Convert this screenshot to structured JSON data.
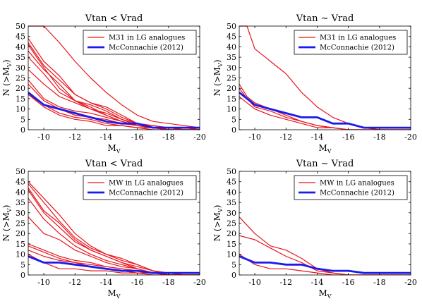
{
  "chart_data": [
    {
      "type": "line",
      "title": "Vtan < Vrad",
      "xlabel": "M_V",
      "ylabel": "N (>M_V)",
      "xlim": [
        -9,
        -20
      ],
      "ylim": [
        0,
        50
      ],
      "xticks": [
        -10,
        -12,
        -14,
        -16,
        -18,
        -20
      ],
      "yticks": [
        0,
        5,
        10,
        15,
        20,
        25,
        30,
        35,
        40,
        45,
        50
      ],
      "legend_position": "top-right",
      "legend": [
        "M31 in LG analogues",
        "McConnachie (2012)"
      ],
      "colors": {
        "simulated": "#e8141c",
        "observed": "#1a1aeb"
      },
      "simulated_series": [
        {
          "x": [
            -9,
            -10,
            -11,
            -12,
            -13,
            -14,
            -15,
            -16,
            -17,
            -18,
            -19,
            -20
          ],
          "y": [
            50,
            50,
            42,
            33,
            25,
            18,
            12,
            7,
            4,
            3,
            2,
            1
          ]
        },
        {
          "x": [
            -9,
            -10,
            -11,
            -12,
            -13,
            -14,
            -15,
            -16,
            -17,
            -18,
            -19,
            -20
          ],
          "y": [
            44,
            33,
            26,
            17,
            13,
            10,
            6,
            3,
            2,
            1,
            1,
            0
          ]
        },
        {
          "x": [
            -9,
            -10,
            -11,
            -12,
            -13,
            -14,
            -15,
            -16,
            -17,
            -18,
            -19,
            -20
          ],
          "y": [
            42,
            31,
            24,
            17,
            13,
            11,
            7,
            3,
            2,
            1,
            0,
            0
          ]
        },
        {
          "x": [
            -9,
            -10,
            -11,
            -12,
            -13,
            -14,
            -15,
            -16,
            -17,
            -18,
            -19,
            -20
          ],
          "y": [
            41,
            30,
            20,
            14,
            10,
            8,
            5,
            2,
            1,
            0,
            0,
            0
          ]
        },
        {
          "x": [
            -9,
            -10,
            -11,
            -12,
            -13,
            -14,
            -15,
            -16,
            -17,
            -18,
            -19,
            -20
          ],
          "y": [
            38,
            29,
            22,
            14,
            12,
            9,
            5,
            3,
            1,
            1,
            0,
            0
          ]
        },
        {
          "x": [
            -9,
            -10,
            -11,
            -12,
            -13,
            -14,
            -15,
            -16,
            -17,
            -18,
            -19,
            -20
          ],
          "y": [
            35,
            27,
            18,
            14,
            11,
            7,
            4,
            2,
            1,
            0,
            0,
            0
          ]
        },
        {
          "x": [
            -9,
            -10,
            -11,
            -12,
            -13,
            -14,
            -15,
            -16,
            -17,
            -18,
            -19,
            -20
          ],
          "y": [
            29,
            22,
            16,
            13,
            10,
            7,
            4,
            2,
            1,
            0,
            0,
            0
          ]
        },
        {
          "x": [
            -9,
            -10,
            -11,
            -12,
            -13,
            -14,
            -15,
            -16,
            -17,
            -18,
            -19,
            -20
          ],
          "y": [
            24,
            15,
            11,
            9,
            8,
            6,
            4,
            2,
            1,
            0,
            0,
            0
          ]
        },
        {
          "x": [
            -9,
            -10,
            -11,
            -12,
            -13,
            -14,
            -15,
            -16,
            -17,
            -18,
            -19,
            -20
          ],
          "y": [
            22,
            14,
            10,
            7,
            6,
            5,
            3,
            2,
            1,
            0,
            0,
            0
          ]
        },
        {
          "x": [
            -9,
            -10,
            -11,
            -12,
            -13,
            -14,
            -15,
            -16,
            -17,
            -18,
            -19,
            -20
          ],
          "y": [
            17,
            12,
            8,
            6,
            5,
            3,
            2,
            1,
            1,
            0,
            0,
            0
          ]
        },
        {
          "x": [
            -9,
            -10,
            -11,
            -12,
            -13,
            -14,
            -15,
            -16,
            -17,
            -18,
            -19,
            -20
          ],
          "y": [
            17,
            11,
            7,
            5,
            4,
            2,
            2,
            1,
            0,
            0,
            0,
            0
          ]
        }
      ],
      "observed_series": {
        "x": [
          -9,
          -10,
          -11,
          -12,
          -13,
          -14,
          -15,
          -16,
          -17,
          -18,
          -19,
          -20
        ],
        "y": [
          18,
          12,
          10,
          8,
          6,
          4,
          3,
          3,
          1,
          1,
          1,
          1
        ]
      }
    },
    {
      "type": "line",
      "title": "Vtan ∼ Vrad",
      "xlabel": "M_V",
      "ylabel": "N (>M_V)",
      "xlim": [
        -9,
        -20
      ],
      "ylim": [
        0,
        50
      ],
      "xticks": [
        -10,
        -12,
        -14,
        -16,
        -18,
        -20
      ],
      "yticks": [
        0,
        5,
        10,
        15,
        20,
        25,
        30,
        35,
        40,
        45,
        50
      ],
      "legend_position": "top-right",
      "legend": [
        "M31 in LG analogues",
        "McConnachie (2012)"
      ],
      "colors": {
        "simulated": "#e8141c",
        "observed": "#1a1aeb"
      },
      "simulated_series": [
        {
          "x": [
            -9,
            -9.5,
            -10,
            -11,
            -12,
            -13,
            -14,
            -15,
            -16,
            -17,
            -18,
            -19,
            -20
          ],
          "y": [
            50,
            50,
            39,
            33,
            27,
            18,
            11,
            6,
            3,
            1,
            0,
            0,
            0
          ]
        },
        {
          "x": [
            -9,
            -9.5,
            -10,
            -11,
            -12,
            -13,
            -14,
            -15,
            -16,
            -17,
            -18,
            -19,
            -20
          ],
          "y": [
            22,
            16,
            13,
            10,
            7,
            4,
            2,
            1,
            0,
            0,
            0,
            0,
            0
          ]
        },
        {
          "x": [
            -9,
            -9.5,
            -10,
            -11,
            -12,
            -13,
            -14,
            -15,
            -16,
            -17,
            -18,
            -19,
            -20
          ],
          "y": [
            20,
            15,
            11,
            9,
            6,
            4,
            2,
            1,
            0,
            0,
            0,
            0,
            0
          ]
        },
        {
          "x": [
            -9,
            -9.5,
            -10,
            -11,
            -12,
            -13,
            -14,
            -15,
            -16,
            -17,
            -18,
            -19,
            -20
          ],
          "y": [
            16,
            13,
            10,
            7,
            5,
            3,
            1,
            1,
            0,
            0,
            0,
            0,
            0
          ]
        }
      ],
      "observed_series": {
        "x": [
          -9,
          -9.5,
          -10,
          -11,
          -12,
          -13,
          -14,
          -15,
          -16,
          -17,
          -18,
          -19,
          -20
        ],
        "y": [
          18,
          15,
          12,
          10,
          8,
          6,
          6,
          3,
          3,
          1,
          1,
          1,
          1
        ]
      }
    },
    {
      "type": "line",
      "title": "Vtan < Vrad",
      "xlabel": "M_V",
      "ylabel": "N (>M_V)",
      "xlim": [
        -9,
        -20
      ],
      "ylim": [
        0,
        50
      ],
      "xticks": [
        -10,
        -12,
        -14,
        -16,
        -18,
        -20
      ],
      "yticks": [
        0,
        5,
        10,
        15,
        20,
        25,
        30,
        35,
        40,
        45,
        50
      ],
      "legend_position": "top-right",
      "legend": [
        "MW in LG analogues",
        "McConnachie (2012)"
      ],
      "colors": {
        "simulated": "#e8141c",
        "observed": "#1a1aeb"
      },
      "simulated_series": [
        {
          "x": [
            -9,
            -10,
            -11,
            -12,
            -13,
            -14,
            -15,
            -16,
            -17,
            -18,
            -19,
            -20
          ],
          "y": [
            45,
            37,
            29,
            20,
            14,
            10,
            7,
            5,
            2,
            0,
            0,
            0
          ]
        },
        {
          "x": [
            -9,
            -10,
            -11,
            -12,
            -13,
            -14,
            -15,
            -16,
            -17,
            -18,
            -19,
            -20
          ],
          "y": [
            44,
            35,
            26,
            18,
            13,
            10,
            8,
            5,
            2,
            1,
            0,
            0
          ]
        },
        {
          "x": [
            -9,
            -10,
            -11,
            -12,
            -13,
            -14,
            -15,
            -16,
            -17,
            -18,
            -19,
            -20
          ],
          "y": [
            42,
            31,
            25,
            17,
            12,
            9,
            6,
            4,
            2,
            1,
            0,
            0
          ]
        },
        {
          "x": [
            -9,
            -10,
            -11,
            -12,
            -13,
            -14,
            -15,
            -16,
            -17,
            -18,
            -19,
            -20
          ],
          "y": [
            41,
            30,
            23,
            16,
            12,
            9,
            6,
            3,
            1,
            0,
            0,
            0
          ]
        },
        {
          "x": [
            -9,
            -10,
            -11,
            -12,
            -13,
            -14,
            -15,
            -16,
            -17,
            -18,
            -19,
            -20
          ],
          "y": [
            37,
            27,
            20,
            14,
            10,
            7,
            5,
            3,
            1,
            0,
            0,
            0
          ]
        },
        {
          "x": [
            -9,
            -10,
            -11,
            -12,
            -13,
            -14,
            -15,
            -16,
            -17,
            -18,
            -19,
            -20
          ],
          "y": [
            28,
            20,
            17,
            12,
            9,
            6,
            4,
            3,
            1,
            0,
            0,
            0
          ]
        },
        {
          "x": [
            -9,
            -10,
            -11,
            -12,
            -13,
            -14,
            -15,
            -16,
            -17,
            -18,
            -19,
            -20
          ],
          "y": [
            15,
            12,
            9,
            7,
            6,
            4,
            3,
            2,
            1,
            0,
            0,
            0
          ]
        },
        {
          "x": [
            -9,
            -10,
            -11,
            -12,
            -13,
            -14,
            -15,
            -16,
            -17,
            -18,
            -19,
            -20
          ],
          "y": [
            14,
            11,
            8,
            6,
            5,
            4,
            3,
            2,
            1,
            0,
            0,
            0
          ]
        },
        {
          "x": [
            -9,
            -10,
            -11,
            -12,
            -13,
            -14,
            -15,
            -16,
            -17,
            -18,
            -19,
            -20
          ],
          "y": [
            12,
            9,
            7,
            6,
            4,
            3,
            2,
            1,
            1,
            0,
            0,
            0
          ]
        },
        {
          "x": [
            -9,
            -10,
            -11,
            -12,
            -13,
            -14,
            -15,
            -16,
            -17,
            -18,
            -19,
            -20
          ],
          "y": [
            10,
            6,
            3,
            3,
            2,
            2,
            1,
            1,
            0,
            0,
            0,
            0
          ]
        }
      ],
      "observed_series": {
        "x": [
          -9,
          -10,
          -11,
          -12,
          -13,
          -14,
          -15,
          -16,
          -17,
          -18,
          -19,
          -20
        ],
        "y": [
          9,
          6,
          6,
          5,
          4,
          3,
          2,
          2,
          1,
          1,
          1,
          1
        ]
      }
    },
    {
      "type": "line",
      "title": "Vtan ∼ Vrad",
      "xlabel": "M_V",
      "ylabel": "N (>M_V)",
      "xlim": [
        -9,
        -20
      ],
      "ylim": [
        0,
        50
      ],
      "xticks": [
        -10,
        -12,
        -14,
        -16,
        -18,
        -20
      ],
      "yticks": [
        0,
        5,
        10,
        15,
        20,
        25,
        30,
        35,
        40,
        45,
        50
      ],
      "legend_position": "top-right",
      "legend": [
        "MW in LG analogues",
        "McConnachie (2012)"
      ],
      "colors": {
        "simulated": "#e8141c",
        "observed": "#1a1aeb"
      },
      "simulated_series": [
        {
          "x": [
            -9,
            -10,
            -11,
            -12,
            -13,
            -14,
            -15,
            -16,
            -17,
            -18,
            -19,
            -20
          ],
          "y": [
            28,
            20,
            14,
            12,
            8,
            3,
            1,
            0,
            0,
            0,
            0,
            0
          ]
        },
        {
          "x": [
            -9,
            -10,
            -11,
            -12,
            -13,
            -14,
            -15,
            -16,
            -17,
            -18,
            -19,
            -20
          ],
          "y": [
            19,
            17,
            13,
            9,
            6,
            2,
            1,
            0,
            0,
            0,
            0,
            0
          ]
        },
        {
          "x": [
            -9,
            -10,
            -11,
            -12,
            -13,
            -14,
            -15,
            -16,
            -17,
            -18,
            -19,
            -20
          ],
          "y": [
            10,
            5,
            3,
            3,
            2,
            1,
            0,
            0,
            0,
            0,
            0,
            0
          ]
        }
      ],
      "observed_series": {
        "x": [
          -9,
          -10,
          -11,
          -12,
          -13,
          -14,
          -15,
          -16,
          -17,
          -18,
          -19,
          -20
        ],
        "y": [
          9,
          6,
          6,
          5,
          5,
          3,
          2,
          2,
          1,
          1,
          1,
          1
        ]
      }
    }
  ]
}
